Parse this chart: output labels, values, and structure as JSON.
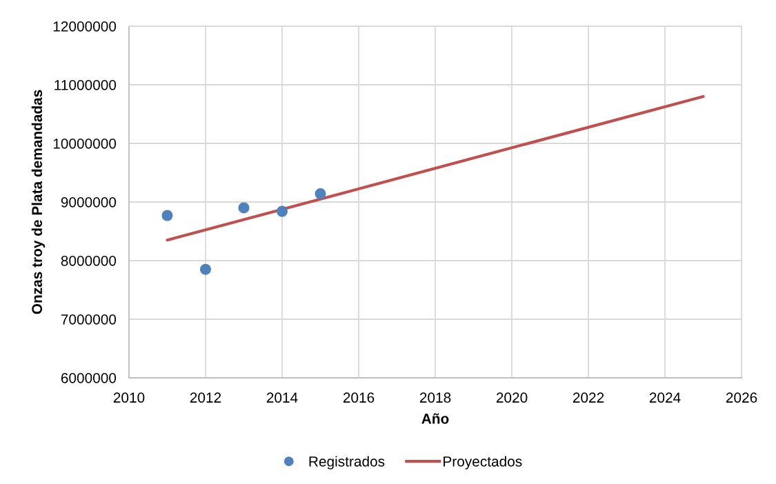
{
  "chart_data": {
    "type": "scatter",
    "xlabel": "Año",
    "ylabel": "Onzas troy de Plata demandadas",
    "xlim": [
      2010,
      2026
    ],
    "xticks": [
      2010,
      2012,
      2014,
      2016,
      2018,
      2020,
      2022,
      2024,
      2026
    ],
    "ylim": [
      6000000,
      12000000
    ],
    "yticks": [
      6000000,
      7000000,
      8000000,
      9000000,
      10000000,
      11000000,
      12000000
    ],
    "grid": true,
    "legend": "bottom",
    "series": [
      {
        "name": "Registrados",
        "color": "#4f81bd",
        "marker": "circle",
        "x": [
          2011,
          2012,
          2013,
          2014,
          2015
        ],
        "values": [
          8770000,
          7850000,
          8900000,
          8840000,
          9140000
        ]
      },
      {
        "name": "Proyectados",
        "type": "line",
        "color": "#c0504d",
        "line_style": "solid",
        "marker": "none",
        "x": [
          2011,
          2025
        ],
        "values": [
          8350000,
          10800000
        ]
      }
    ]
  }
}
